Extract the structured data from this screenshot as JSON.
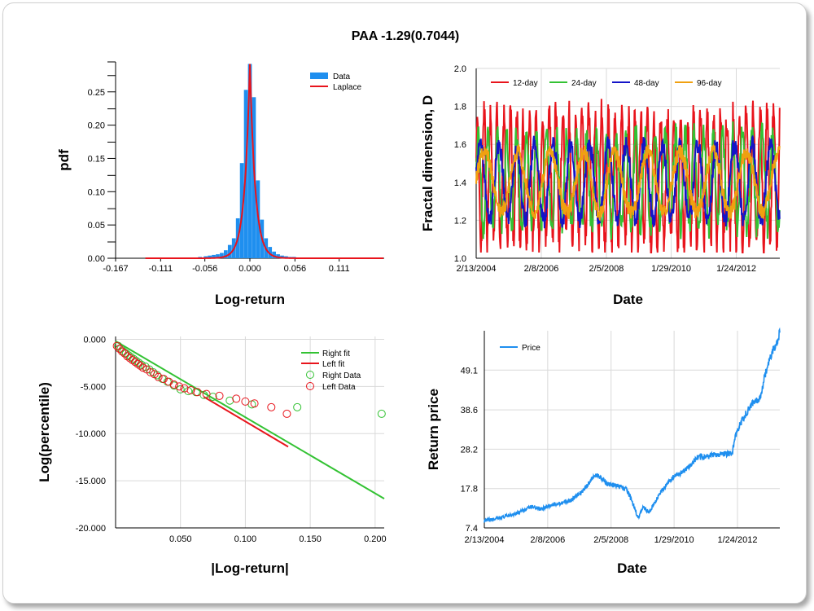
{
  "title": "PAA -1.29(0.7044)",
  "chart_data": [
    {
      "type": "bar",
      "id": "pdf",
      "xlabel": "Log-return",
      "ylabel": "pdf",
      "xticks": [
        "-0.167",
        "-0.111",
        "-0.056",
        "0.000",
        "0.056",
        "0.111"
      ],
      "yticks": [
        "0.00",
        "0.05",
        "0.10",
        "0.15",
        "0.20",
        "0.25"
      ],
      "xlim": [
        -0.167,
        0.167
      ],
      "ylim": [
        0,
        0.295
      ],
      "legend": [
        "Data",
        "Laplace"
      ],
      "legend_position": "top-right",
      "colors": {
        "data": "#1f8fef",
        "laplace": "#e8141c"
      },
      "bins": [
        {
          "x": -0.126,
          "y": 0.001
        },
        {
          "x": -0.1,
          "y": 0.001
        },
        {
          "x": -0.08,
          "y": 0.001
        },
        {
          "x": -0.062,
          "y": 0.002
        },
        {
          "x": -0.055,
          "y": 0.003
        },
        {
          "x": -0.05,
          "y": 0.004
        },
        {
          "x": -0.045,
          "y": 0.005
        },
        {
          "x": -0.04,
          "y": 0.006
        },
        {
          "x": -0.035,
          "y": 0.008
        },
        {
          "x": -0.03,
          "y": 0.012
        },
        {
          "x": -0.025,
          "y": 0.02
        },
        {
          "x": -0.02,
          "y": 0.03
        },
        {
          "x": -0.015,
          "y": 0.06
        },
        {
          "x": -0.01,
          "y": 0.143
        },
        {
          "x": -0.005,
          "y": 0.253
        },
        {
          "x": 0.0,
          "y": 0.292
        },
        {
          "x": 0.005,
          "y": 0.242
        },
        {
          "x": 0.01,
          "y": 0.117
        },
        {
          "x": 0.015,
          "y": 0.058
        },
        {
          "x": 0.02,
          "y": 0.03
        },
        {
          "x": 0.025,
          "y": 0.017
        },
        {
          "x": 0.03,
          "y": 0.01
        },
        {
          "x": 0.035,
          "y": 0.006
        },
        {
          "x": 0.04,
          "y": 0.004
        },
        {
          "x": 0.045,
          "y": 0.003
        },
        {
          "x": 0.05,
          "y": 0.002
        },
        {
          "x": 0.055,
          "y": 0.002
        },
        {
          "x": 0.065,
          "y": 0.001
        },
        {
          "x": 0.085,
          "y": 0.001
        },
        {
          "x": 0.105,
          "y": 0.001
        }
      ],
      "laplace": {
        "peak": 0.292,
        "scale": 0.0066
      }
    },
    {
      "type": "line",
      "id": "fractal",
      "xlabel": "Date",
      "ylabel": "Fractal dimension, D",
      "xticks": [
        "2/13/2004",
        "2/8/2006",
        "2/5/2008",
        "1/29/2010",
        "1/24/2012"
      ],
      "yticks": [
        "1.0",
        "1.2",
        "1.4",
        "1.6",
        "1.8",
        "2.0"
      ],
      "xlim": [
        2004.12,
        2013.4
      ],
      "ylim": [
        1.0,
        2.0
      ],
      "legend_position": "top",
      "series": [
        {
          "name": "12-day",
          "color": "#e8141c",
          "center": 1.42,
          "amp": 0.34,
          "period": 0.2
        },
        {
          "name": "24-day",
          "color": "#33c233",
          "center": 1.41,
          "amp": 0.25,
          "period": 0.3
        },
        {
          "name": "48-day",
          "color": "#1414c8",
          "center": 1.4,
          "amp": 0.2,
          "period": 0.55
        },
        {
          "name": "96-day",
          "color": "#f0a010",
          "center": 1.4,
          "amp": 0.16,
          "period": 1.0
        }
      ]
    },
    {
      "type": "scatter",
      "id": "tail",
      "xlabel": "|Log-return|",
      "ylabel": "Log(percentile)",
      "xticks": [
        "0.050",
        "0.100",
        "0.150",
        "0.200"
      ],
      "yticks": [
        "0.000",
        "-5.000",
        "-10.000",
        "-15.000",
        "-20.000"
      ],
      "xlim": [
        0,
        0.207
      ],
      "ylim": [
        -20,
        0.3
      ],
      "legend": [
        "Right fit",
        "Left fit",
        "Right Data",
        "Left Data"
      ],
      "legend_position": "top-right",
      "colors": {
        "right": "#33c233",
        "left": "#e8141c"
      },
      "right_fit": [
        [
          0.0,
          -0.2
        ],
        [
          0.207,
          -16.9
        ]
      ],
      "left_fit": [
        [
          0.068,
          -6.1
        ],
        [
          0.133,
          -11.4
        ]
      ],
      "right_data": [
        [
          0.002,
          -0.7
        ],
        [
          0.004,
          -1.0
        ],
        [
          0.006,
          -1.3
        ],
        [
          0.008,
          -1.5
        ],
        [
          0.01,
          -1.7
        ],
        [
          0.012,
          -1.9
        ],
        [
          0.014,
          -2.1
        ],
        [
          0.016,
          -2.3
        ],
        [
          0.018,
          -2.5
        ],
        [
          0.02,
          -2.7
        ],
        [
          0.023,
          -2.9
        ],
        [
          0.026,
          -3.2
        ],
        [
          0.029,
          -3.5
        ],
        [
          0.032,
          -3.8
        ],
        [
          0.036,
          -4.2
        ],
        [
          0.04,
          -4.5
        ],
        [
          0.045,
          -4.9
        ],
        [
          0.05,
          -5.3
        ],
        [
          0.056,
          -5.5
        ],
        [
          0.062,
          -5.6
        ],
        [
          0.068,
          -5.9
        ],
        [
          0.075,
          -6.1
        ],
        [
          0.088,
          -6.5
        ],
        [
          0.105,
          -6.9
        ],
        [
          0.14,
          -7.2
        ],
        [
          0.205,
          -7.9
        ]
      ],
      "left_data": [
        [
          0.001,
          -0.7
        ],
        [
          0.003,
          -1.0
        ],
        [
          0.005,
          -1.3
        ],
        [
          0.007,
          -1.5
        ],
        [
          0.009,
          -1.8
        ],
        [
          0.011,
          -2.0
        ],
        [
          0.013,
          -2.2
        ],
        [
          0.015,
          -2.4
        ],
        [
          0.017,
          -2.6
        ],
        [
          0.019,
          -2.8
        ],
        [
          0.021,
          -3.0
        ],
        [
          0.024,
          -3.2
        ],
        [
          0.027,
          -3.5
        ],
        [
          0.03,
          -3.7
        ],
        [
          0.033,
          -4.0
        ],
        [
          0.037,
          -4.2
        ],
        [
          0.041,
          -4.5
        ],
        [
          0.045,
          -4.8
        ],
        [
          0.049,
          -5.0
        ],
        [
          0.053,
          -5.2
        ],
        [
          0.058,
          -5.4
        ],
        [
          0.063,
          -5.6
        ],
        [
          0.07,
          -5.8
        ],
        [
          0.08,
          -6.0
        ],
        [
          0.093,
          -6.3
        ],
        [
          0.1,
          -6.6
        ],
        [
          0.107,
          -6.8
        ],
        [
          0.12,
          -7.2
        ],
        [
          0.132,
          -7.9
        ]
      ]
    },
    {
      "type": "line",
      "id": "price",
      "xlabel": "Date",
      "ylabel": "Return price",
      "xticks": [
        "2/13/2004",
        "2/8/2006",
        "2/5/2008",
        "1/29/2010",
        "1/24/2012"
      ],
      "yticks": [
        "7.4",
        "17.8",
        "28.2",
        "38.6",
        "49.1"
      ],
      "xlim": [
        2004.12,
        2013.4
      ],
      "ylim": [
        7.4,
        59.5
      ],
      "legend": [
        "Price"
      ],
      "legend_position": "top-left",
      "colors": {
        "price": "#1f8fef"
      },
      "anchors": [
        [
          2004.12,
          9.2
        ],
        [
          2004.6,
          10.0
        ],
        [
          2005.2,
          11.5
        ],
        [
          2005.6,
          13.0
        ],
        [
          2005.9,
          12.5
        ],
        [
          2006.3,
          13.6
        ],
        [
          2006.8,
          14.5
        ],
        [
          2007.2,
          17.0
        ],
        [
          2007.6,
          21.5
        ],
        [
          2007.8,
          20.5
        ],
        [
          2008.0,
          19.0
        ],
        [
          2008.3,
          18.5
        ],
        [
          2008.6,
          17.5
        ],
        [
          2008.85,
          12.5
        ],
        [
          2008.95,
          9.8
        ],
        [
          2009.1,
          13.0
        ],
        [
          2009.3,
          11.5
        ],
        [
          2009.6,
          16.0
        ],
        [
          2010.0,
          20.5
        ],
        [
          2010.5,
          23.0
        ],
        [
          2010.8,
          26.0
        ],
        [
          2011.2,
          26.5
        ],
        [
          2011.6,
          27.0
        ],
        [
          2011.9,
          27.0
        ],
        [
          2012.0,
          31.5
        ],
        [
          2012.2,
          35.5
        ],
        [
          2012.5,
          40.0
        ],
        [
          2012.8,
          42.0
        ],
        [
          2012.9,
          46.5
        ],
        [
          2013.1,
          52.5
        ],
        [
          2013.3,
          56.5
        ],
        [
          2013.4,
          59.0
        ]
      ]
    }
  ]
}
